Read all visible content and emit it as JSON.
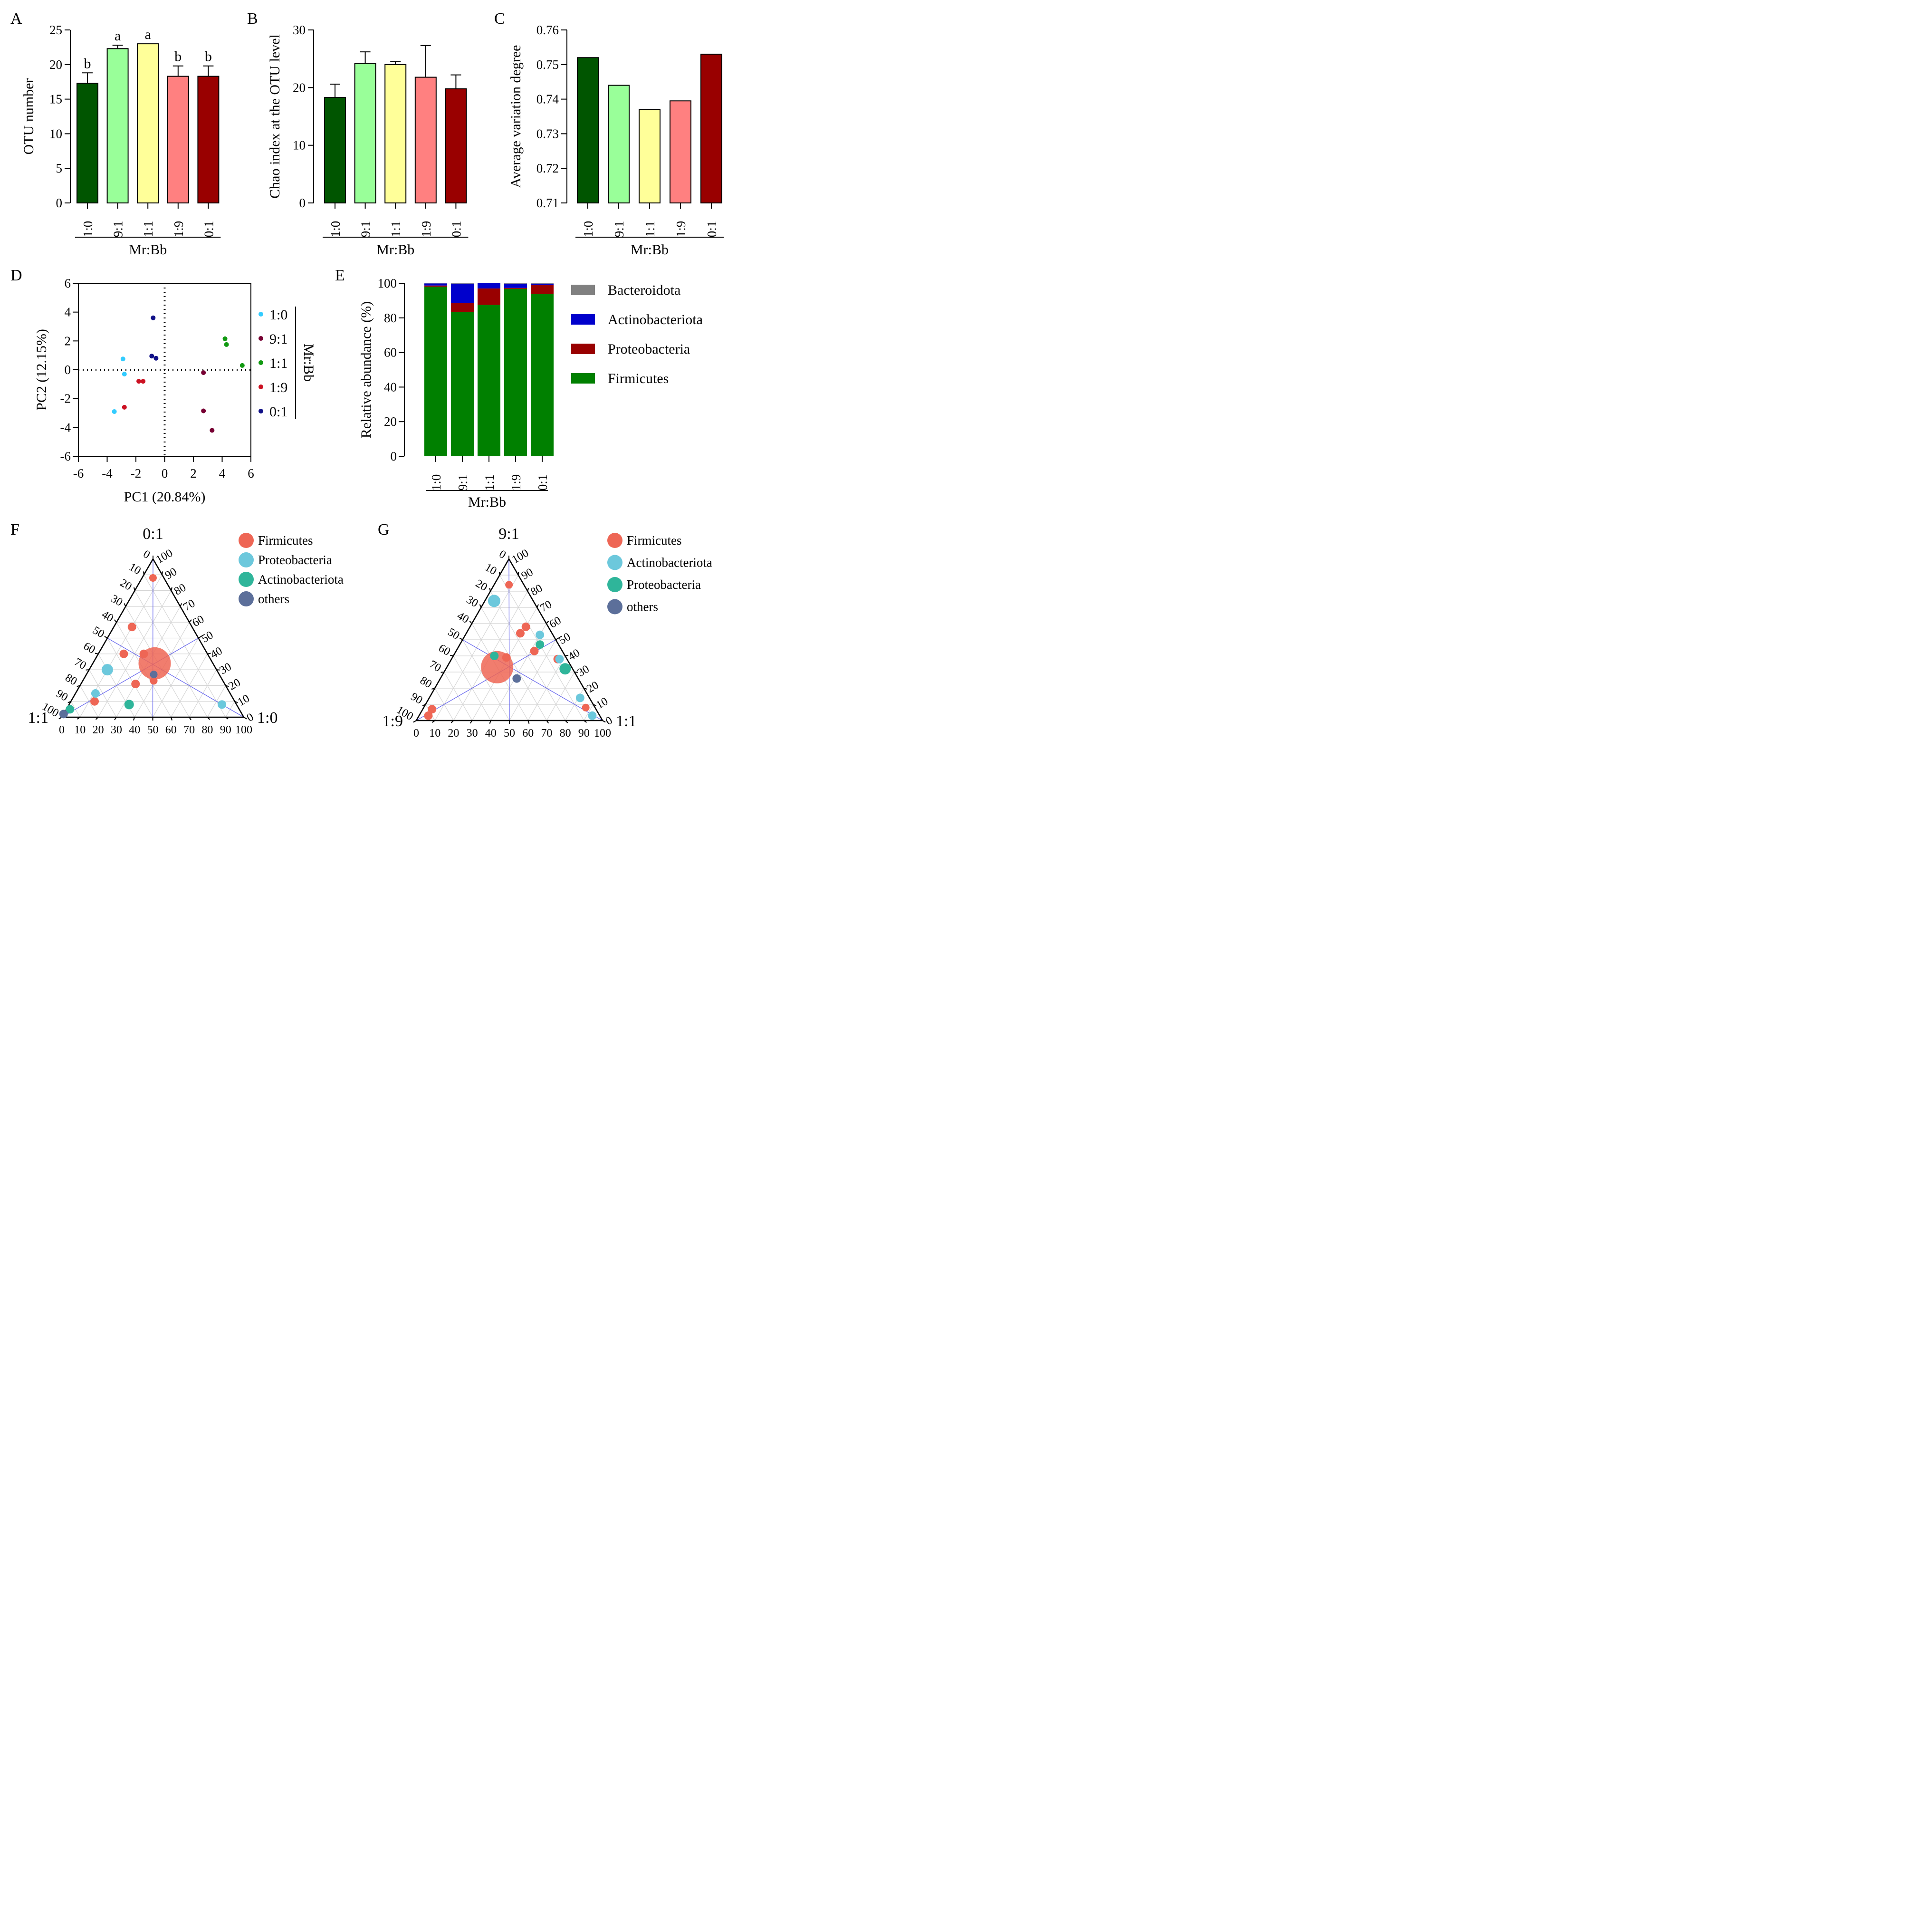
{
  "panels": {
    "A": "A",
    "B": "B",
    "C": "C",
    "D": "D",
    "E": "E",
    "F": "F",
    "G": "G"
  },
  "chart_data": [
    {
      "id": "A",
      "type": "bar",
      "title": "",
      "ylabel": "OTU number",
      "xlabel": "Mr:Bb",
      "categories": [
        "1:0",
        "9:1",
        "1:1",
        "1:9",
        "0:1"
      ],
      "values": [
        17.3,
        22.3,
        23.0,
        18.3,
        18.3
      ],
      "errors": [
        1.5,
        0.5,
        0.0,
        1.5,
        1.5
      ],
      "significance": [
        "b",
        "a",
        "a",
        "b",
        "b"
      ],
      "colors": [
        "#005500",
        "#99ff99",
        "#ffff99",
        "#ff8080",
        "#990000"
      ],
      "ylim": [
        0,
        25
      ],
      "yticks": [
        "0",
        "5",
        "10",
        "15",
        "20",
        "25"
      ]
    },
    {
      "id": "B",
      "type": "bar",
      "ylabel": "Chao index at the OTU level",
      "xlabel": "Mr:Bb",
      "categories": [
        "1:0",
        "9:1",
        "1:1",
        "1:9",
        "0:1"
      ],
      "values": [
        18.3,
        24.2,
        24.0,
        21.8,
        19.8
      ],
      "errors": [
        2.3,
        2.0,
        0.5,
        5.5,
        2.4
      ],
      "colors": [
        "#005500",
        "#99ff99",
        "#ffff99",
        "#ff8080",
        "#990000"
      ],
      "ylim": [
        0,
        30
      ],
      "yticks": [
        "0",
        "10",
        "20",
        "30"
      ]
    },
    {
      "id": "C",
      "type": "bar",
      "ylabel": "Average variation degree",
      "xlabel": "Mr:Bb",
      "categories": [
        "1:0",
        "9:1",
        "1:1",
        "1:9",
        "0:1"
      ],
      "values": [
        0.752,
        0.744,
        0.737,
        0.7395,
        0.753
      ],
      "colors": [
        "#005500",
        "#99ff99",
        "#ffff99",
        "#ff8080",
        "#990000"
      ],
      "ylim": [
        0.71,
        0.76
      ],
      "yticks": [
        "0.71",
        "0.72",
        "0.73",
        "0.74",
        "0.75",
        "0.76"
      ]
    },
    {
      "id": "D",
      "type": "scatter",
      "xlabel": "PC1 (20.84%)",
      "ylabel": "PC2 (12.15%)",
      "xlim": [
        -6,
        6
      ],
      "ylim": [
        -6,
        6
      ],
      "xticks": [
        "-6",
        "-4",
        "-2",
        "0",
        "2",
        "4",
        "6"
      ],
      "yticks": [
        "-6",
        "-4",
        "-2",
        "0",
        "2",
        "4",
        "6"
      ],
      "legend_title": "Mr:Bb",
      "series": [
        {
          "name": "1:0",
          "color": "#33ccff",
          "points": [
            [
              -2.9,
              0.75
            ],
            [
              -2.8,
              -0.3
            ],
            [
              -3.5,
              -2.9
            ]
          ]
        },
        {
          "name": "9:1",
          "color": "#770033",
          "points": [
            [
              2.7,
              -0.2
            ],
            [
              2.7,
              -2.85
            ],
            [
              3.3,
              -4.2
            ]
          ]
        },
        {
          "name": "1:1",
          "color": "#119911",
          "points": [
            [
              4.2,
              2.15
            ],
            [
              4.3,
              1.75
            ],
            [
              5.4,
              0.3
            ]
          ]
        },
        {
          "name": "1:9",
          "color": "#cc1122",
          "points": [
            [
              -1.8,
              -0.8
            ],
            [
              -1.5,
              -0.8
            ],
            [
              -2.8,
              -2.6
            ]
          ]
        },
        {
          "name": "0:1",
          "color": "#111188",
          "points": [
            [
              -0.8,
              3.6
            ],
            [
              -0.9,
              0.95
            ],
            [
              -0.6,
              0.8
            ]
          ]
        }
      ]
    },
    {
      "id": "E",
      "type": "bar",
      "stacked": true,
      "ylabel": "Relative abundance (%)",
      "xlabel": "Mr:Bb",
      "categories": [
        "1:0",
        "9:1",
        "1:1",
        "1:9",
        "0:1"
      ],
      "ylim": [
        0,
        100
      ],
      "yticks": [
        "0",
        "20",
        "40",
        "60",
        "80",
        "100"
      ],
      "series": [
        {
          "name": "Firmicutes",
          "color": "#008000",
          "values": [
            98.0,
            83.5,
            87.5,
            96.8,
            93.8
          ]
        },
        {
          "name": "Proteobacteria",
          "color": "#990000",
          "values": [
            0.7,
            5.0,
            9.5,
            0.5,
            5.2
          ]
        },
        {
          "name": "Actinobacteriota",
          "color": "#0000cc",
          "values": [
            1.2,
            11.3,
            3.0,
            2.5,
            0.8
          ]
        },
        {
          "name": "Bacteroidota",
          "color": "#808080",
          "values": [
            0.1,
            0.2,
            0.0,
            0.2,
            0.2
          ]
        }
      ],
      "legend_order": [
        "Bacteroidota",
        "Actinobacteriota",
        "Proteobacteria",
        "Firmicutes"
      ]
    },
    {
      "id": "F",
      "type": "ternary",
      "vertices": {
        "top": "0:1",
        "left": "1:1",
        "right": "1:0"
      },
      "ticks": [
        "0",
        "10",
        "20",
        "30",
        "40",
        "50",
        "60",
        "70",
        "80",
        "90",
        "100"
      ],
      "legend": [
        {
          "name": "Firmicutes",
          "color": "#ee6655"
        },
        {
          "name": "Proteobacteria",
          "color": "#6cc8dc"
        },
        {
          "name": "Actinobacteriota",
          "color": "#2fb59a"
        },
        {
          "name": "others",
          "color": "#5c6f9a"
        }
      ],
      "points": [
        {
          "g": "Firmicutes",
          "a": 88,
          "b": 6,
          "c": 6,
          "r": 8
        },
        {
          "g": "Firmicutes",
          "a": 57,
          "b": 33,
          "c": 10,
          "r": 9
        },
        {
          "g": "Firmicutes",
          "a": 40,
          "b": 46,
          "c": 14,
          "r": 9
        },
        {
          "g": "Firmicutes",
          "a": 40,
          "b": 35,
          "c": 25,
          "r": 9
        },
        {
          "g": "Firmicutes",
          "a": 34,
          "b": 32,
          "c": 34,
          "r": 34
        },
        {
          "g": "Firmicutes",
          "a": 21,
          "b": 49,
          "c": 30,
          "r": 9
        },
        {
          "g": "Firmicutes",
          "a": 23,
          "b": 38,
          "c": 39,
          "r": 8
        },
        {
          "g": "Firmicutes",
          "a": 10,
          "b": 77,
          "c": 13,
          "r": 9
        },
        {
          "g": "Proteobacteria",
          "a": 30,
          "b": 60,
          "c": 10,
          "r": 12
        },
        {
          "g": "Proteobacteria",
          "a": 15,
          "b": 74,
          "c": 11,
          "r": 9
        },
        {
          "g": "Proteobacteria",
          "a": 8,
          "b": 8,
          "c": 84,
          "r": 9
        },
        {
          "g": "Actinobacteriota",
          "a": 8,
          "b": 59,
          "c": 33,
          "r": 10
        },
        {
          "g": "Actinobacteriota",
          "a": 5,
          "b": 93,
          "c": 2,
          "r": 9
        },
        {
          "g": "others",
          "a": 2,
          "b": 98,
          "c": 0,
          "r": 9
        },
        {
          "g": "others",
          "a": 27,
          "b": 36,
          "c": 37,
          "r": 8
        }
      ]
    },
    {
      "id": "G",
      "type": "ternary",
      "vertices": {
        "top": "9:1",
        "left": "1:9",
        "right": "1:1"
      },
      "ticks": [
        "0",
        "10",
        "20",
        "30",
        "40",
        "50",
        "60",
        "70",
        "80",
        "90",
        "100"
      ],
      "legend": [
        {
          "name": "Firmicutes",
          "color": "#ee6655"
        },
        {
          "name": "Actinobacteriota",
          "color": "#6cc8dc"
        },
        {
          "name": "Proteobacteria",
          "color": "#2fb59a"
        },
        {
          "name": "others",
          "color": "#5c6f9a"
        }
      ],
      "points": [
        {
          "g": "Firmicutes",
          "a": 84,
          "b": 8,
          "c": 8,
          "r": 8
        },
        {
          "g": "Firmicutes",
          "a": 58,
          "b": 12,
          "c": 30,
          "r": 9
        },
        {
          "g": "Firmicutes",
          "a": 54,
          "b": 17,
          "c": 29,
          "r": 9
        },
        {
          "g": "Firmicutes",
          "a": 43,
          "b": 15,
          "c": 42,
          "r": 9
        },
        {
          "g": "Firmicutes",
          "a": 39,
          "b": 32,
          "c": 29,
          "r": 9
        },
        {
          "g": "Firmicutes",
          "a": 33,
          "b": 40,
          "c": 27,
          "r": 34
        },
        {
          "g": "Firmicutes",
          "a": 38,
          "b": 5,
          "c": 57,
          "r": 9
        },
        {
          "g": "Firmicutes",
          "a": 8,
          "b": 5,
          "c": 87,
          "r": 8
        },
        {
          "g": "Firmicutes",
          "a": 7,
          "b": 88,
          "c": 5,
          "r": 9
        },
        {
          "g": "Firmicutes",
          "a": 3,
          "b": 92,
          "c": 5,
          "r": 9
        },
        {
          "g": "Actinobacteriota",
          "a": 74,
          "b": 21,
          "c": 5,
          "r": 13
        },
        {
          "g": "Actinobacteriota",
          "a": 53,
          "b": 7,
          "c": 40,
          "r": 9
        },
        {
          "g": "Actinobacteriota",
          "a": 38,
          "b": 4,
          "c": 58,
          "r": 9
        },
        {
          "g": "Actinobacteriota",
          "a": 14,
          "b": 5,
          "c": 81,
          "r": 9
        },
        {
          "g": "Actinobacteriota",
          "a": 3,
          "b": 4,
          "c": 93,
          "r": 9
        },
        {
          "g": "Proteobacteria",
          "a": 47,
          "b": 10,
          "c": 43,
          "r": 9
        },
        {
          "g": "Proteobacteria",
          "a": 32,
          "b": 4,
          "c": 64,
          "r": 12
        },
        {
          "g": "Proteobacteria",
          "a": 40,
          "b": 38,
          "c": 22,
          "r": 9
        },
        {
          "g": "others",
          "a": 26,
          "b": 33,
          "c": 41,
          "r": 9
        }
      ]
    }
  ]
}
